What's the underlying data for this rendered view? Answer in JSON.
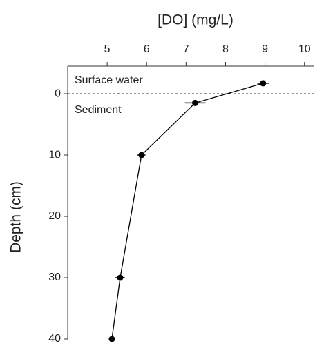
{
  "chart_data": {
    "type": "line",
    "xlabel": "[DO] (mg/L)",
    "ylabel": "Depth (cm)",
    "xlim": [
      4,
      10.25
    ],
    "xticks": [
      5,
      6,
      7,
      8,
      9,
      10
    ],
    "x_axis_position": "top",
    "ylim": [
      -4.5,
      40
    ],
    "yticks": [
      0,
      10,
      20,
      30,
      40
    ],
    "y_inverted": true,
    "reference_line_y": 0,
    "annotations": [
      "Surface water",
      "Sediment"
    ],
    "series": [
      {
        "color": "#000000",
        "x": [
          8.95,
          7.23,
          5.87,
          5.33,
          5.12
        ],
        "y": [
          -1.7,
          1.5,
          10,
          30,
          40
        ],
        "xerr": [
          0.15,
          0.26,
          0.1,
          0.12,
          0.05
        ]
      }
    ]
  }
}
